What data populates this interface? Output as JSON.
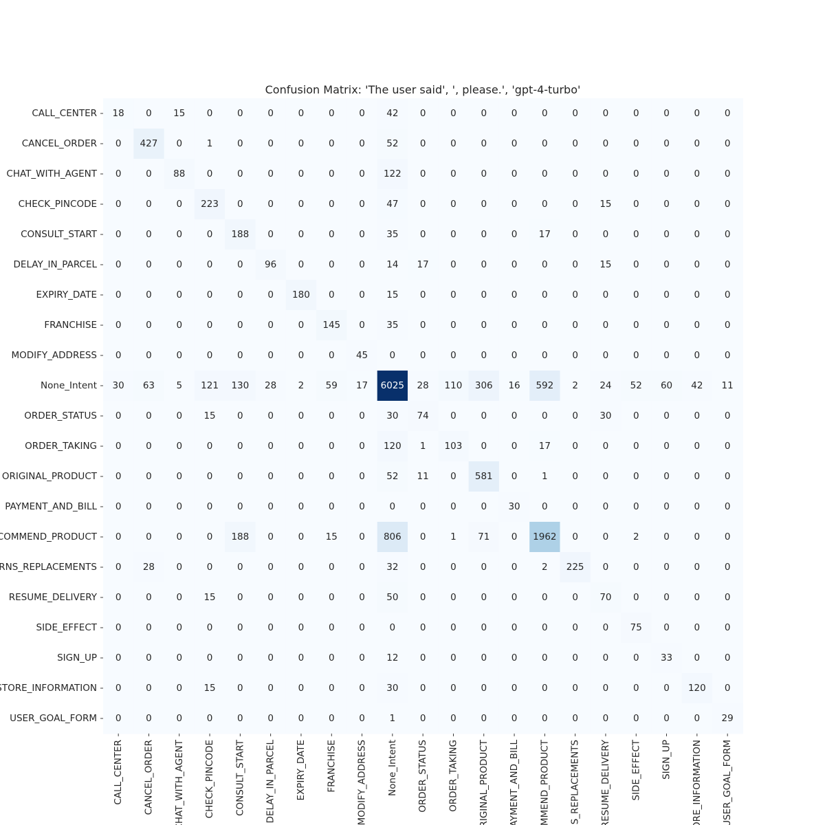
{
  "chart_data": {
    "type": "heatmap",
    "title": "Confusion Matrix: 'The user said', ', please.', 'gpt-4-turbo'",
    "xlabel": "",
    "ylabel": "",
    "colormap": "Blues",
    "color_low": "#f7fbff",
    "color_high": "#08306b",
    "colorbar": false,
    "labels": [
      "CALL_CENTER",
      "CANCEL_ORDER",
      "CHAT_WITH_AGENT",
      "CHECK_PINCODE",
      "CONSULT_START",
      "DELAY_IN_PARCEL",
      "EXPIRY_DATE",
      "FRANCHISE",
      "MODIFY_ADDRESS",
      "None_Intent",
      "ORDER_STATUS",
      "ORDER_TAKING",
      "ORIGINAL_PRODUCT",
      "PAYMENT_AND_BILL",
      "RECOMMEND_PRODUCT",
      "RETURNS_REPLACEMENTS",
      "RESUME_DELIVERY",
      "SIDE_EFFECT",
      "SIGN_UP",
      "STORE_INFORMATION",
      "USER_GOAL_FORM"
    ],
    "matrix": [
      [
        18,
        0,
        15,
        0,
        0,
        0,
        0,
        0,
        0,
        42,
        0,
        0,
        0,
        0,
        0,
        0,
        0,
        0,
        0,
        0,
        0
      ],
      [
        0,
        427,
        0,
        1,
        0,
        0,
        0,
        0,
        0,
        52,
        0,
        0,
        0,
        0,
        0,
        0,
        0,
        0,
        0,
        0,
        0
      ],
      [
        0,
        0,
        88,
        0,
        0,
        0,
        0,
        0,
        0,
        122,
        0,
        0,
        0,
        0,
        0,
        0,
        0,
        0,
        0,
        0,
        0
      ],
      [
        0,
        0,
        0,
        223,
        0,
        0,
        0,
        0,
        0,
        47,
        0,
        0,
        0,
        0,
        0,
        0,
        15,
        0,
        0,
        0,
        0
      ],
      [
        0,
        0,
        0,
        0,
        188,
        0,
        0,
        0,
        0,
        35,
        0,
        0,
        0,
        0,
        17,
        0,
        0,
        0,
        0,
        0,
        0
      ],
      [
        0,
        0,
        0,
        0,
        0,
        96,
        0,
        0,
        0,
        14,
        17,
        0,
        0,
        0,
        0,
        0,
        15,
        0,
        0,
        0,
        0
      ],
      [
        0,
        0,
        0,
        0,
        0,
        0,
        180,
        0,
        0,
        15,
        0,
        0,
        0,
        0,
        0,
        0,
        0,
        0,
        0,
        0,
        0
      ],
      [
        0,
        0,
        0,
        0,
        0,
        0,
        0,
        145,
        0,
        35,
        0,
        0,
        0,
        0,
        0,
        0,
        0,
        0,
        0,
        0,
        0
      ],
      [
        0,
        0,
        0,
        0,
        0,
        0,
        0,
        0,
        45,
        0,
        0,
        0,
        0,
        0,
        0,
        0,
        0,
        0,
        0,
        0,
        0
      ],
      [
        30,
        63,
        5,
        121,
        130,
        28,
        2,
        59,
        17,
        6025,
        28,
        110,
        306,
        16,
        592,
        2,
        24,
        52,
        60,
        42,
        11
      ],
      [
        0,
        0,
        0,
        15,
        0,
        0,
        0,
        0,
        0,
        30,
        74,
        0,
        0,
        0,
        0,
        0,
        30,
        0,
        0,
        0,
        0
      ],
      [
        0,
        0,
        0,
        0,
        0,
        0,
        0,
        0,
        0,
        120,
        1,
        103,
        0,
        0,
        17,
        0,
        0,
        0,
        0,
        0,
        0
      ],
      [
        0,
        0,
        0,
        0,
        0,
        0,
        0,
        0,
        0,
        52,
        11,
        0,
        581,
        0,
        1,
        0,
        0,
        0,
        0,
        0,
        0
      ],
      [
        0,
        0,
        0,
        0,
        0,
        0,
        0,
        0,
        0,
        0,
        0,
        0,
        0,
        30,
        0,
        0,
        0,
        0,
        0,
        0,
        0
      ],
      [
        0,
        0,
        0,
        0,
        188,
        0,
        0,
        15,
        0,
        806,
        0,
        1,
        71,
        0,
        1962,
        0,
        0,
        2,
        0,
        0,
        0
      ],
      [
        0,
        28,
        0,
        0,
        0,
        0,
        0,
        0,
        0,
        32,
        0,
        0,
        0,
        0,
        2,
        225,
        0,
        0,
        0,
        0,
        0
      ],
      [
        0,
        0,
        0,
        15,
        0,
        0,
        0,
        0,
        0,
        50,
        0,
        0,
        0,
        0,
        0,
        0,
        70,
        0,
        0,
        0,
        0
      ],
      [
        0,
        0,
        0,
        0,
        0,
        0,
        0,
        0,
        0,
        0,
        0,
        0,
        0,
        0,
        0,
        0,
        0,
        75,
        0,
        0,
        0
      ],
      [
        0,
        0,
        0,
        0,
        0,
        0,
        0,
        0,
        0,
        12,
        0,
        0,
        0,
        0,
        0,
        0,
        0,
        0,
        33,
        0,
        0
      ],
      [
        0,
        0,
        0,
        15,
        0,
        0,
        0,
        0,
        0,
        30,
        0,
        0,
        0,
        0,
        0,
        0,
        0,
        0,
        0,
        120,
        0
      ],
      [
        0,
        0,
        0,
        0,
        0,
        0,
        0,
        0,
        0,
        1,
        0,
        0,
        0,
        0,
        0,
        0,
        0,
        0,
        0,
        0,
        29
      ]
    ]
  }
}
